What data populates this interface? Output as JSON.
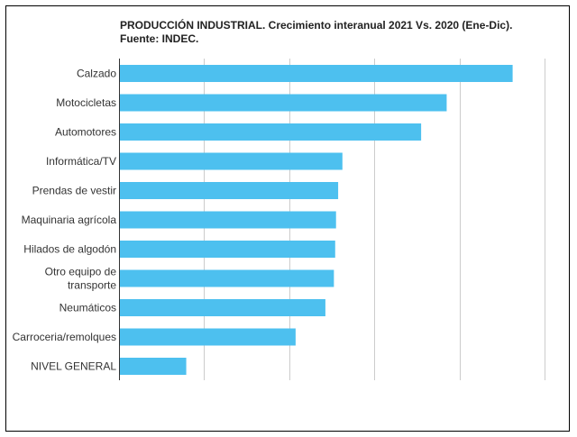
{
  "chart_data": {
    "type": "bar",
    "orientation": "horizontal",
    "title": "PRODUCCIÓN INDUSTRIAL. Crecimiento interanual 2021 Vs. 2020 (Ene-Dic). Fuente: INDEC.",
    "categories": [
      "Calzado",
      "Motocicletas",
      "Automotores",
      "Informática/TV",
      "Prendas de vestir",
      "Maquinaria agrícola",
      "Hilados de algodón",
      "Otro equipo de transporte",
      "Neumáticos",
      "Carroceria/remolques",
      "NIVEL GENERAL"
    ],
    "values": [
      92.5,
      77,
      71,
      52.5,
      51.5,
      51,
      50.8,
      50.5,
      48.5,
      41.5,
      15.8
    ],
    "xlim": [
      0,
      100
    ],
    "grid": true,
    "bar_color": "#4DC0EF",
    "grid_color": "#CCCCCC"
  }
}
